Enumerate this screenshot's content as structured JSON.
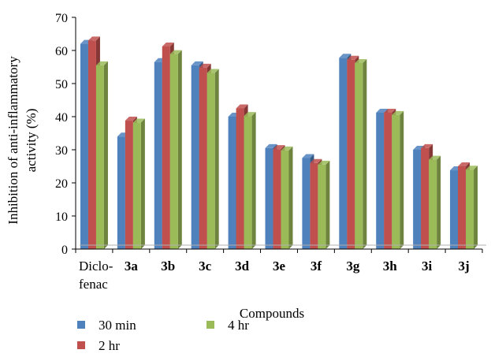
{
  "chart_data": {
    "type": "bar",
    "title": "",
    "xlabel": "Compounds",
    "ylabel_lines": [
      "Inhibition of anti-inflammatory",
      "activity (%)"
    ],
    "ylim": [
      0,
      70
    ],
    "yticks": [
      "0",
      "10",
      "20",
      "30",
      "40",
      "50",
      "60",
      "70"
    ],
    "categories": [
      {
        "lines": [
          "Diclo-",
          "fenac"
        ],
        "bold": false
      },
      {
        "lines": [
          "3a"
        ],
        "bold": true
      },
      {
        "lines": [
          "3b"
        ],
        "bold": true
      },
      {
        "lines": [
          "3c"
        ],
        "bold": true
      },
      {
        "lines": [
          "3d"
        ],
        "bold": true
      },
      {
        "lines": [
          "3e"
        ],
        "bold": true
      },
      {
        "lines": [
          "3f"
        ],
        "bold": true
      },
      {
        "lines": [
          "3g"
        ],
        "bold": true
      },
      {
        "lines": [
          "3h"
        ],
        "bold": true
      },
      {
        "lines": [
          "3i"
        ],
        "bold": true
      },
      {
        "lines": [
          "3j"
        ],
        "bold": true
      }
    ],
    "series": [
      {
        "name": "30 min",
        "color": "#4f81bd",
        "values": [
          62,
          34,
          56.5,
          55.5,
          40,
          30.5,
          27.5,
          57.8,
          41.2,
          30,
          23.8
        ]
      },
      {
        "name": "2 hr",
        "color": "#c0504d",
        "values": [
          63,
          38.8,
          61.2,
          54.8,
          42.5,
          30.2,
          26,
          57.2,
          41.2,
          30.5,
          25
        ]
      },
      {
        "name": "4 hr",
        "color": "#9bbb59",
        "values": [
          55.5,
          38.2,
          58.9,
          53.2,
          40.2,
          29.8,
          25.5,
          56.2,
          40.5,
          27,
          24
        ]
      }
    ],
    "legend_position": "bottom-left",
    "grid": false
  }
}
